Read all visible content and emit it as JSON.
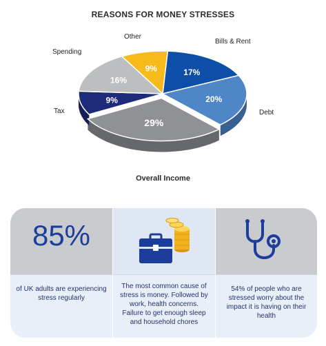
{
  "chart_data": {
    "type": "pie",
    "title": "REASONS FOR MONEY STRESSES",
    "subtitle": "Overall Income",
    "slices": [
      {
        "label": "Bills & Rent",
        "value": 17,
        "display": "17%",
        "color": "#0d4fa8"
      },
      {
        "label": "Debt",
        "value": 20,
        "display": "20%",
        "color": "#4f86c8"
      },
      {
        "label": "Overall Income",
        "value": 29,
        "display": "29%",
        "color": "#8f9194"
      },
      {
        "label": "Tax",
        "value": 9,
        "display": "9%",
        "color": "#1e2a7a"
      },
      {
        "label": "Spending",
        "value": 16,
        "display": "16%",
        "color": "#bdbec0"
      },
      {
        "label": "Other",
        "value": 9,
        "display": "9%",
        "color": "#f6bb1a"
      }
    ],
    "legend": "none"
  },
  "stats": {
    "big_number": "85%",
    "card1_text": "of UK adults are experiencing stress regularly",
    "card2_text": "The most common cause of stress is money. Followed by work, health concerns. Failure to get enough sleep and household chores",
    "card3_text": "54% of people who are stressed worry about the impact it is having on their health"
  },
  "icons": {
    "card2": "briefcase-coins-icon",
    "card3": "stethoscope-icon"
  },
  "colors": {
    "accent_blue": "#1b3d9b",
    "gold": "#f6bb1a"
  }
}
